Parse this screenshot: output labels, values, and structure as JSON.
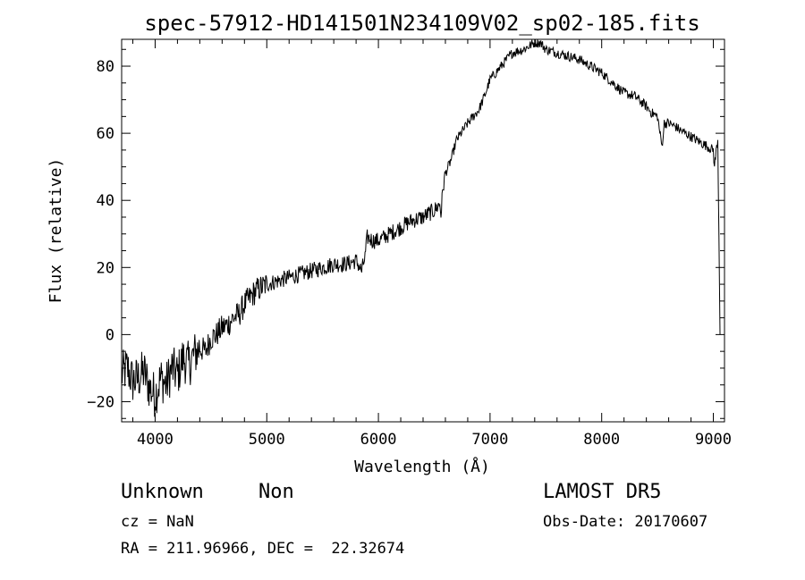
{
  "chart_data": {
    "type": "line",
    "title": "spec-57912-HD141501N234109V02_sp02-185.fits",
    "xlabel": "Wavelength (Å)",
    "ylabel": "Flux (relative)",
    "xlim": [
      3700,
      9100
    ],
    "ylim": [
      -26,
      88
    ],
    "xticks": [
      4000,
      5000,
      6000,
      7000,
      8000,
      9000
    ],
    "yticks": [
      -20,
      0,
      20,
      40,
      60,
      80
    ],
    "ytick_labels": [
      "−20",
      "0",
      "20",
      "40",
      "60",
      "80"
    ],
    "grid": false,
    "series": [
      {
        "x": [
          3700,
          3750,
          3800,
          3850,
          3900,
          3950,
          4000,
          4050,
          4100,
          4150,
          4200,
          4250,
          4300,
          4350,
          4400,
          4450,
          4500,
          4550,
          4600,
          4650,
          4700,
          4750,
          4800,
          4850,
          4900,
          4950,
          5000,
          5100,
          5200,
          5300,
          5400,
          5500,
          5600,
          5700,
          5800,
          5850,
          5880,
          5900,
          5950,
          6000,
          6100,
          6200,
          6300,
          6400,
          6500,
          6550,
          6560,
          6580,
          6600,
          6650,
          6700,
          6800,
          6900,
          6950,
          7000,
          7100,
          7200,
          7300,
          7400,
          7450,
          7500,
          7600,
          7700,
          7800,
          7900,
          8000,
          8100,
          8200,
          8300,
          8400,
          8450,
          8500,
          8540,
          8560,
          8600,
          8660,
          8700,
          8800,
          8900,
          9000,
          9010,
          9030,
          9040,
          9060
        ],
        "y": [
          -12,
          -10,
          -14,
          -13,
          -11,
          -16,
          -18,
          -13,
          -15,
          -10,
          -12,
          -7,
          -9,
          -6,
          -4,
          -5,
          -1,
          0,
          2,
          3,
          5,
          6,
          9,
          11,
          13,
          14,
          15,
          16,
          17,
          18,
          19,
          20,
          21,
          21,
          22,
          19,
          23,
          29,
          28,
          28,
          30,
          32,
          34,
          35,
          37,
          39,
          36,
          44,
          48,
          52,
          58,
          63,
          67,
          71,
          76,
          80,
          84,
          85,
          87,
          87,
          85,
          84,
          83,
          82,
          80,
          78,
          75,
          72,
          71,
          68,
          66,
          65,
          56,
          63,
          63,
          62,
          61,
          59,
          57,
          55,
          50,
          56,
          58,
          0
        ]
      }
    ]
  },
  "info": {
    "object_class": "Unknown",
    "subclass": "Non",
    "survey": "LAMOST DR5",
    "cz": "cz = NaN",
    "obs_date": "Obs-Date: 20170607",
    "coords": "RA = 211.96966, DEC =  22.32674"
  }
}
